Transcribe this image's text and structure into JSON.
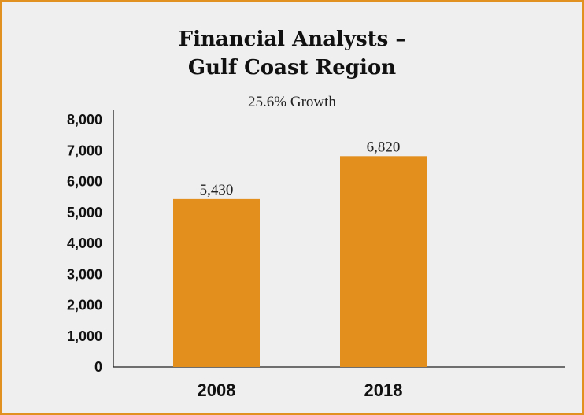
{
  "chart_data": {
    "type": "bar",
    "title": "Financial Analysts –\nGulf Coast Region",
    "subtitle": "25.6% Growth",
    "categories": [
      "2008",
      "2018"
    ],
    "values": [
      5430,
      6820
    ],
    "data_labels": [
      "5,430",
      "6,820"
    ],
    "ylim": [
      0,
      8000
    ],
    "yticks": [
      0,
      1000,
      2000,
      3000,
      4000,
      5000,
      6000,
      7000,
      8000
    ],
    "ytick_labels": [
      "0",
      "1,000",
      "2,000",
      "3,000",
      "4,000",
      "5,000",
      "6,000",
      "7,000",
      "8,000"
    ],
    "xlabel": "",
    "ylabel": "",
    "grid": false,
    "legend": "none",
    "bar_color": "#e28f1e",
    "frame_color": "#e0911f",
    "background_color": "#efefef"
  }
}
